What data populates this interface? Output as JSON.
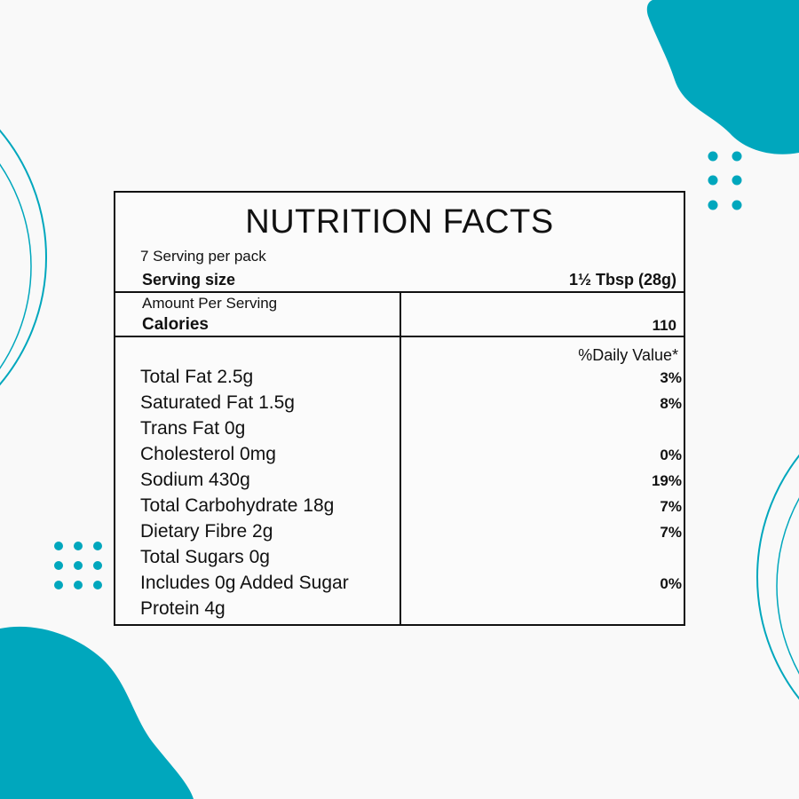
{
  "label": {
    "title": "NUTRITION FACTS",
    "servings_per_pack": "7 Serving per pack",
    "serving_size_label": "Serving size",
    "serving_size_value": "1½ Tbsp (28g)",
    "amount_per_serving": "Amount Per Serving",
    "calories_label": "Calories",
    "calories_value": "110",
    "daily_value_header": "%Daily Value*",
    "nutrients": [
      {
        "name": "Total Fat 2.5g",
        "dv": "3%"
      },
      {
        "name": "Saturated Fat 1.5g",
        "dv": "8%"
      },
      {
        "name": "Trans Fat 0g",
        "dv": ""
      },
      {
        "name": "Cholesterol 0mg",
        "dv": "0%"
      },
      {
        "name": "Sodium 430g",
        "dv": "19%"
      },
      {
        "name": "Total Carbohydrate 18g",
        "dv": "7%"
      },
      {
        "name": "Dietary Fibre 2g",
        "dv": "7%"
      },
      {
        "name": "Total Sugars 0g",
        "dv": ""
      },
      {
        "name": "Includes 0g Added Sugar",
        "dv": "0%"
      },
      {
        "name": "Protein 4g",
        "dv": ""
      }
    ]
  },
  "colors": {
    "accent": "#00a7bd",
    "background": "#f9f9f9",
    "border": "#111111"
  }
}
